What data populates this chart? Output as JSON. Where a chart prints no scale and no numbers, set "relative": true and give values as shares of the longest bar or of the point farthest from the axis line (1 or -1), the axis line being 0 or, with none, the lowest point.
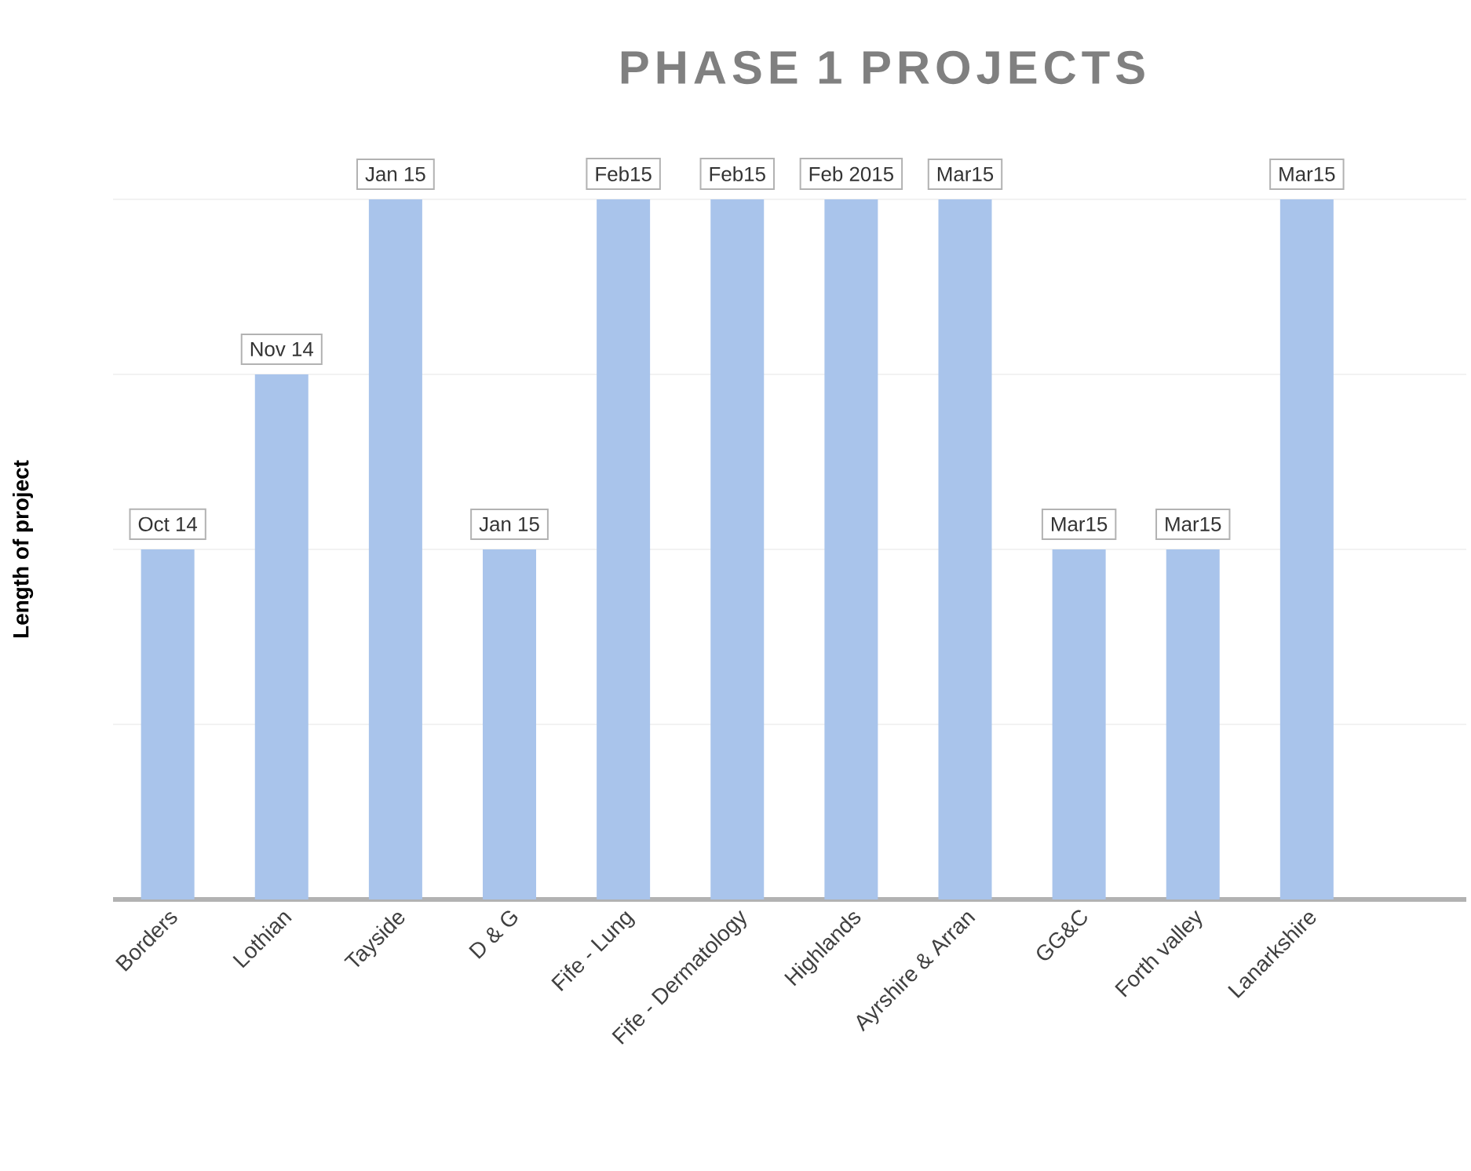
{
  "chart_data": {
    "type": "bar",
    "title": "PHASE 1 PROJECTS",
    "ylabel": "Length of project",
    "categories": [
      "Borders",
      "Lothian",
      "Tayside",
      "D & G",
      "Fife - Lung",
      "Fife - Dermatology",
      "Highlands",
      "Ayrshire & Arran",
      "GG&C",
      "Forth valley",
      "Lanarkshire"
    ],
    "values": [
      0.5,
      0.75,
      1,
      0.5,
      1,
      1,
      1,
      1,
      0.5,
      0.5,
      1
    ],
    "annotations": [
      {
        "text": "Oct 14",
        "x": "Borders",
        "y": 0.5
      },
      {
        "text": "Nov 14",
        "x": "Lothian",
        "y": 0.75
      },
      {
        "text": "Jan 15",
        "x": "Tayside",
        "y": 1
      },
      {
        "text": "Jan 15",
        "x": "D & G",
        "y": 0.5
      },
      {
        "text": "Feb15",
        "x": "Fife - Lung",
        "y": 1
      },
      {
        "text": "Feb15",
        "x": "Fife - Dermatology",
        "y": 1
      },
      {
        "text": "Feb 2015",
        "x": "Highlands",
        "y": 1
      },
      {
        "text": "Mar15",
        "x": "Ayrshire & Arran",
        "y": 1
      },
      {
        "text": "Mar15",
        "x": "GG&C",
        "y": 0.5
      },
      {
        "text": "Mar15",
        "x": "Forth valley",
        "y": 0.5
      },
      {
        "text": "Mar15",
        "x": "Lanarkshire",
        "y": 1
      }
    ],
    "color": "#a9c4eb",
    "relative": true,
    "grid": "y"
  }
}
